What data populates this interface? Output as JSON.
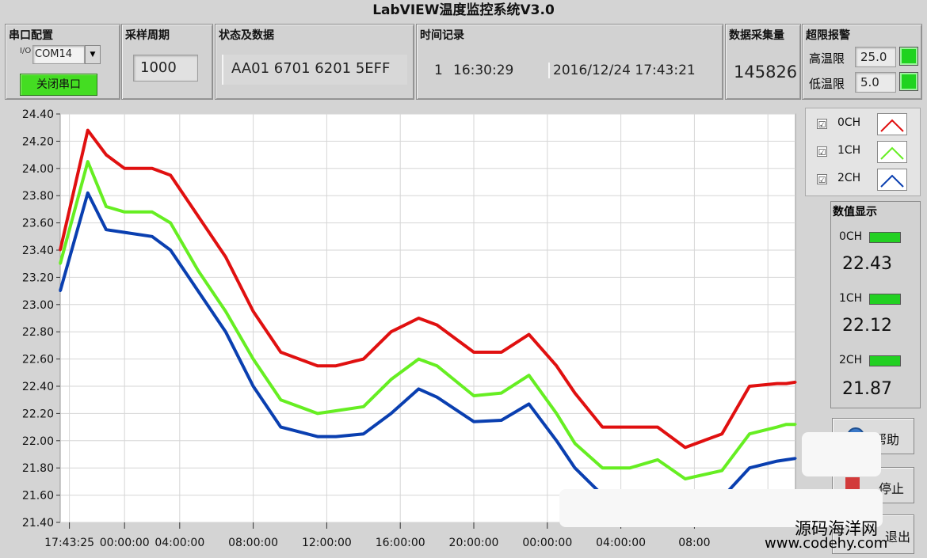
{
  "title": "LabVIEW温度监控系统V3.0",
  "serial": {
    "label": "串口配置",
    "port_icon_text": "I/O",
    "port": "COM14",
    "close_button": "关闭串口"
  },
  "sample": {
    "label": "采样周期",
    "value": "1000"
  },
  "status": {
    "label": "状态及数据",
    "value": "AA01 6701 6201 5EFF"
  },
  "time": {
    "label": "时间记录",
    "count": "1",
    "clock": "16:30:29",
    "date": "2016/12/24 17:43:21"
  },
  "collect": {
    "label": "数据采集量",
    "value": "145826"
  },
  "alarm": {
    "label": "超限报警",
    "high_label": "高温限",
    "high_value": "25.0",
    "low_label": "低温限",
    "low_value": "5.0",
    "led_color": "#22cc22"
  },
  "legend": [
    {
      "name": "0CH",
      "checked": "☑",
      "color": "#e01010"
    },
    {
      "name": "1CH",
      "checked": "☑",
      "color": "#66ee22"
    },
    {
      "name": "2CH",
      "checked": "☑",
      "color": "#0a3fb0"
    }
  ],
  "values_panel": {
    "label": "数值显示",
    "channels": [
      {
        "name": "0CH",
        "value": "22.43"
      },
      {
        "name": "1CH",
        "value": "22.12"
      },
      {
        "name": "2CH",
        "value": "21.87"
      }
    ]
  },
  "buttons": {
    "help": "帮助",
    "stop": "停止",
    "exit": "退出"
  },
  "watermark": {
    "line1": "源码海洋网",
    "line2": "www.codehy.com"
  },
  "chart_data": {
    "type": "line",
    "ylim": [
      21.4,
      24.4
    ],
    "yticks": [
      "24.40",
      "24.20",
      "24.00",
      "23.80",
      "23.60",
      "23.40",
      "23.20",
      "23.00",
      "22.80",
      "22.60",
      "22.40",
      "22.20",
      "22.00",
      "21.80",
      "21.60",
      "21.40"
    ],
    "xticks": [
      "17:43:25",
      "00:00:00",
      "04:00:00",
      "08:00:00",
      "12:00:00",
      "16:00:00",
      "20:00:00",
      "00:00:00",
      "04:00:00",
      "08:00"
    ],
    "x_hours": [
      0,
      1.5,
      2.5,
      3.5,
      5,
      6,
      7.5,
      9,
      10.5,
      12,
      14,
      15,
      16.5,
      18,
      19.5,
      20.5,
      22.5,
      24,
      25.5,
      27,
      28,
      29.5,
      31,
      32.5,
      34,
      36,
      37.5,
      39,
      39.5,
      40
    ],
    "series": [
      {
        "name": "0CH",
        "color": "#e01010",
        "values": [
          23.4,
          24.28,
          24.1,
          24.0,
          24.0,
          23.95,
          23.65,
          23.35,
          22.95,
          22.65,
          22.55,
          22.55,
          22.6,
          22.8,
          22.9,
          22.85,
          22.65,
          22.65,
          22.78,
          22.55,
          22.35,
          22.1,
          22.1,
          22.1,
          21.95,
          22.05,
          22.4,
          22.42,
          22.42,
          22.43
        ]
      },
      {
        "name": "1CH",
        "color": "#66ee22",
        "values": [
          23.3,
          24.05,
          23.72,
          23.68,
          23.68,
          23.6,
          23.25,
          22.95,
          22.6,
          22.3,
          22.2,
          22.22,
          22.25,
          22.45,
          22.6,
          22.55,
          22.33,
          22.35,
          22.48,
          22.2,
          21.98,
          21.8,
          21.8,
          21.86,
          21.72,
          21.78,
          22.05,
          22.1,
          22.12,
          22.12
        ]
      },
      {
        "name": "2CH",
        "color": "#0a3fb0",
        "values": [
          23.1,
          23.82,
          23.55,
          23.53,
          23.5,
          23.4,
          23.1,
          22.8,
          22.4,
          22.1,
          22.03,
          22.03,
          22.05,
          22.2,
          22.38,
          22.32,
          22.14,
          22.15,
          22.27,
          22.0,
          21.8,
          21.6,
          21.6,
          21.62,
          21.5,
          21.58,
          21.8,
          21.85,
          21.86,
          21.87
        ]
      }
    ]
  }
}
